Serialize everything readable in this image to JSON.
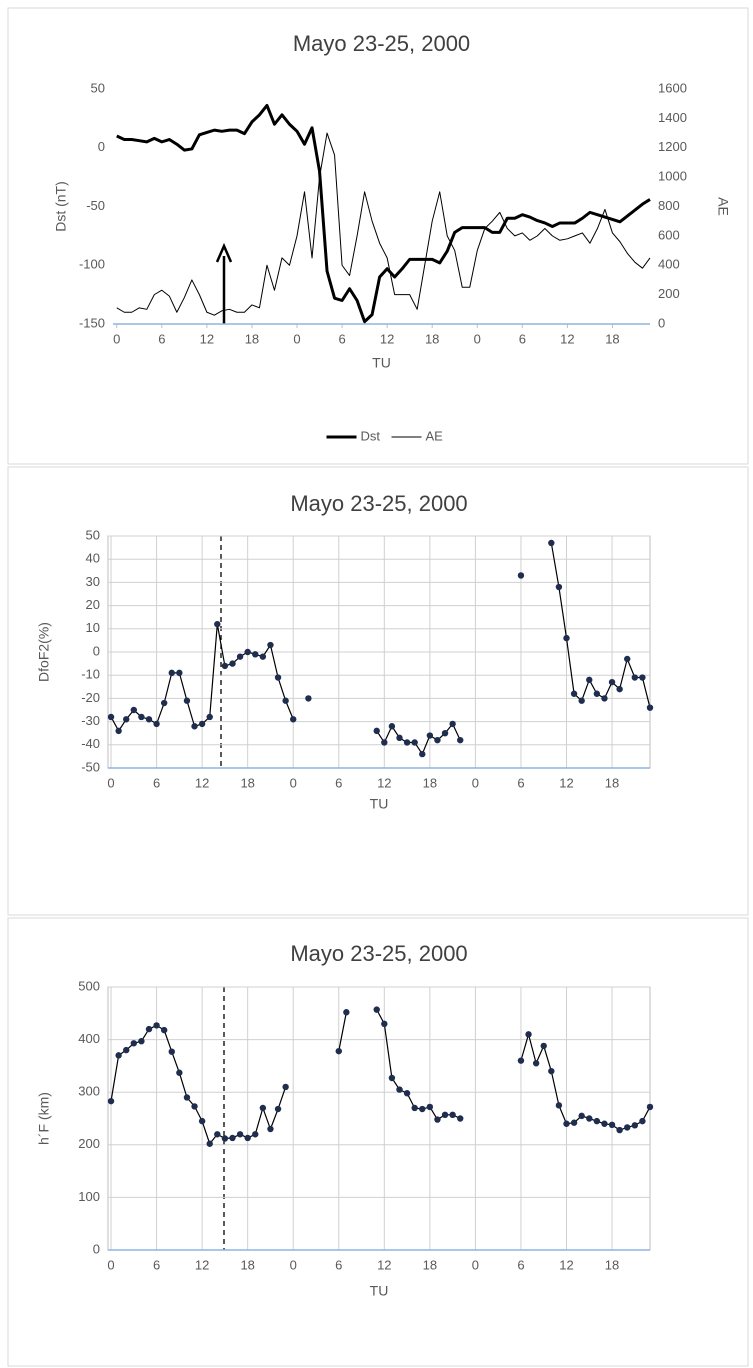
{
  "chart_data": [
    {
      "type": "line",
      "title": "Mayo 23-25, 2000",
      "x_label": "TU",
      "y_label": "Dst (nT)",
      "y2_label": "AE",
      "x": [
        0,
        1,
        2,
        3,
        4,
        5,
        6,
        7,
        8,
        9,
        10,
        11,
        12,
        13,
        14,
        15,
        16,
        17,
        18,
        19,
        20,
        21,
        22,
        23,
        24,
        25,
        26,
        27,
        28,
        29,
        30,
        31,
        32,
        33,
        34,
        35,
        36,
        37,
        38,
        39,
        40,
        41,
        42,
        43,
        44,
        45,
        46,
        47,
        48,
        49,
        50,
        51,
        52,
        53,
        54,
        55,
        56,
        57,
        58,
        59,
        60,
        61,
        62,
        63,
        64,
        65,
        66,
        67,
        68,
        69,
        70,
        71
      ],
      "xlim": [
        -0.5,
        71
      ],
      "xticks": [
        0,
        6,
        12,
        18,
        {
          "value": 24,
          "label": "0"
        },
        {
          "value": 30,
          "label": "6"
        },
        {
          "value": 36,
          "label": "12"
        },
        {
          "value": 42,
          "label": "18"
        },
        {
          "value": 48,
          "label": "0"
        },
        {
          "value": 54,
          "label": "6"
        },
        {
          "value": 60,
          "label": "12"
        },
        {
          "value": 66,
          "label": "18"
        }
      ],
      "ylim": [
        -150,
        50
      ],
      "yticks": [
        -150,
        -100,
        -50,
        0,
        50
      ],
      "y2lim": [
        0,
        1600
      ],
      "y2ticks": [
        0,
        200,
        400,
        600,
        800,
        1000,
        1200,
        1400,
        1600
      ],
      "grid": false,
      "legend": "bottom",
      "series": [
        {
          "name": "Dst",
          "color": "#000000",
          "line_width": 3,
          "axis": "y",
          "values": [
            10,
            7,
            7,
            6,
            5,
            8,
            5,
            7,
            3,
            -2,
            -1,
            11,
            13,
            15,
            14,
            15,
            15,
            12,
            22,
            28,
            36,
            20,
            28,
            20,
            14,
            3,
            17,
            -20,
            -105,
            -128,
            -130,
            -120,
            -130,
            -148,
            -142,
            -110,
            -103,
            -110,
            -103,
            -95,
            -95,
            -95,
            -95,
            -98,
            -88,
            -72,
            -68,
            -68,
            -68,
            -68,
            -72,
            -72,
            -60,
            -60,
            -57,
            -59,
            -62,
            -64,
            -67,
            -64,
            -64,
            -64,
            -60,
            -55,
            -57,
            -59,
            -61,
            -63,
            -58,
            -53,
            -48,
            -44
          ]
        },
        {
          "name": "AE",
          "color": "#000000",
          "line_width": 1,
          "axis": "y2",
          "values": [
            110,
            80,
            80,
            110,
            100,
            200,
            230,
            190,
            80,
            180,
            300,
            200,
            80,
            60,
            90,
            100,
            80,
            80,
            130,
            110,
            400,
            230,
            450,
            400,
            600,
            900,
            450,
            1000,
            1300,
            1150,
            400,
            330,
            600,
            900,
            700,
            550,
            450,
            200,
            200,
            200,
            100,
            400,
            700,
            900,
            600,
            500,
            250,
            250,
            500,
            650,
            700,
            760,
            650,
            600,
            620,
            570,
            600,
            650,
            600,
            570,
            580,
            600,
            620,
            550,
            650,
            780,
            620,
            560,
            480,
            420,
            380,
            450
          ]
        }
      ]
    },
    {
      "type": "line",
      "title": "Mayo 23-25, 2000",
      "x_label": "TU",
      "y_label": "DfoF2(%)",
      "x": [
        0,
        1,
        2,
        3,
        4,
        5,
        6,
        7,
        8,
        9,
        10,
        11,
        12,
        13,
        14,
        15,
        16,
        17,
        18,
        19,
        20,
        21,
        22,
        23,
        24,
        25,
        26,
        27,
        28,
        29,
        30,
        31,
        32,
        33,
        34,
        35,
        36,
        37,
        38,
        39,
        40,
        41,
        42,
        43,
        44,
        45,
        46,
        47,
        48,
        49,
        50,
        51,
        52,
        53,
        54,
        55,
        56,
        57,
        58,
        59,
        60,
        61,
        62,
        63,
        64,
        65,
        66,
        67,
        68,
        69,
        70,
        71
      ],
      "xlim": [
        -0.4,
        71
      ],
      "xticks": [
        0,
        6,
        12,
        18,
        {
          "value": 24,
          "label": "0"
        },
        {
          "value": 30,
          "label": "6"
        },
        {
          "value": 36,
          "label": "12"
        },
        {
          "value": 42,
          "label": "18"
        },
        {
          "value": 48,
          "label": "0"
        },
        {
          "value": 54,
          "label": "6"
        },
        {
          "value": 60,
          "label": "12"
        },
        {
          "value": 66,
          "label": "18"
        }
      ],
      "ylim": [
        -50,
        50
      ],
      "yticks": [
        -50,
        -40,
        -30,
        -20,
        -10,
        0,
        10,
        20,
        30,
        40,
        50
      ],
      "grid": true,
      "marker": true,
      "color": "#000000",
      "marker_color": "#1f2d4f",
      "values": [
        -28,
        -34,
        -29,
        -25,
        -28,
        -29,
        -31,
        -22,
        -9,
        -9,
        -21,
        -32,
        -31,
        -28,
        12,
        -6,
        -5,
        -2,
        0,
        -1,
        -2,
        3,
        -11,
        -21,
        -29,
        null,
        -20,
        null,
        null,
        null,
        null,
        null,
        null,
        null,
        null,
        -34,
        -39,
        -32,
        -37,
        -39,
        -39,
        -44,
        -36,
        -38,
        -35,
        -31,
        -38,
        null,
        null,
        null,
        null,
        null,
        null,
        null,
        33,
        null,
        null,
        null,
        47,
        28,
        6,
        -18,
        -21,
        -12,
        -18,
        -20,
        -13,
        -16,
        -3,
        -11,
        -11,
        -24
      ]
    },
    {
      "type": "line",
      "title": "Mayo 23-25, 2000",
      "x_label": "TU",
      "y_label": "h´F (km)",
      "x": [
        0,
        1,
        2,
        3,
        4,
        5,
        6,
        7,
        8,
        9,
        10,
        11,
        12,
        13,
        14,
        15,
        16,
        17,
        18,
        19,
        20,
        21,
        22,
        23,
        24,
        25,
        26,
        27,
        28,
        29,
        30,
        31,
        32,
        33,
        34,
        35,
        36,
        37,
        38,
        39,
        40,
        41,
        42,
        43,
        44,
        45,
        46,
        47,
        48,
        49,
        50,
        51,
        52,
        53,
        54,
        55,
        56,
        57,
        58,
        59,
        60,
        61,
        62,
        63,
        64,
        65,
        66,
        67,
        68,
        69,
        70,
        71
      ],
      "xlim": [
        -0.4,
        71
      ],
      "xticks": [
        0,
        6,
        12,
        18,
        {
          "value": 24,
          "label": "0"
        },
        {
          "value": 30,
          "label": "6"
        },
        {
          "value": 36,
          "label": "12"
        },
        {
          "value": 42,
          "label": "18"
        },
        {
          "value": 48,
          "label": "0"
        },
        {
          "value": 54,
          "label": "6"
        },
        {
          "value": 60,
          "label": "12"
        },
        {
          "value": 66,
          "label": "18"
        }
      ],
      "ylim": [
        0,
        500
      ],
      "yticks": [
        0,
        100,
        200,
        300,
        400,
        500
      ],
      "grid": true,
      "marker": true,
      "color": "#000000",
      "marker_color": "#1f2d4f",
      "values": [
        283,
        370,
        380,
        393,
        397,
        420,
        427,
        418,
        377,
        337,
        290,
        273,
        245,
        202,
        220,
        212,
        213,
        220,
        213,
        220,
        270,
        230,
        268,
        310,
        null,
        null,
        null,
        null,
        null,
        null,
        378,
        452,
        null,
        null,
        null,
        457,
        430,
        327,
        305,
        298,
        270,
        268,
        272,
        248,
        257,
        257,
        250,
        null,
        null,
        null,
        null,
        null,
        null,
        null,
        360,
        410,
        355,
        388,
        340,
        275,
        240,
        242,
        255,
        250,
        245,
        240,
        238,
        228,
        233,
        237,
        245,
        272
      ]
    }
  ]
}
